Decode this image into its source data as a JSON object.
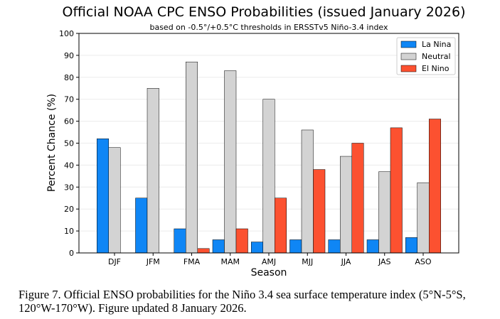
{
  "chart_data": {
    "type": "bar",
    "title": "Official NOAA CPC ENSO Probabilities (issued January 2026)",
    "subtitle": "based on -0.5°/+0.5°C thresholds in ERSSTv5 Niño-3.4 index",
    "xlabel": "Season",
    "ylabel": "Percent Chance (%)",
    "ylim": [
      0,
      100
    ],
    "yticks": [
      "0",
      "10",
      "20",
      "30",
      "40",
      "50",
      "60",
      "70",
      "80",
      "90",
      "100"
    ],
    "grid": true,
    "legend_position": "top-right",
    "categories": [
      "DJF",
      "JFM",
      "FMA",
      "MAM",
      "AMJ",
      "MJJ",
      "JJA",
      "JAS",
      "ASO"
    ],
    "series": [
      {
        "name": "La Nina",
        "color": "#0f86f5",
        "values": [
          52,
          25,
          11,
          6,
          5,
          6,
          6,
          6,
          7
        ]
      },
      {
        "name": "Neutral",
        "color": "#d3d3d3",
        "values": [
          48,
          75,
          87,
          83,
          70,
          56,
          44,
          37,
          32
        ]
      },
      {
        "name": "El Nino",
        "color": "#fc5130",
        "values": [
          0,
          0,
          2,
          11,
          25,
          38,
          50,
          57,
          61
        ]
      }
    ]
  },
  "caption": {
    "line1": "Figure 7. Official ENSO probabilities for the Niño 3.4 sea surface temperature index (5°N-5°S,",
    "line2": "120°W-170°W). Figure updated 8 January 2026."
  }
}
